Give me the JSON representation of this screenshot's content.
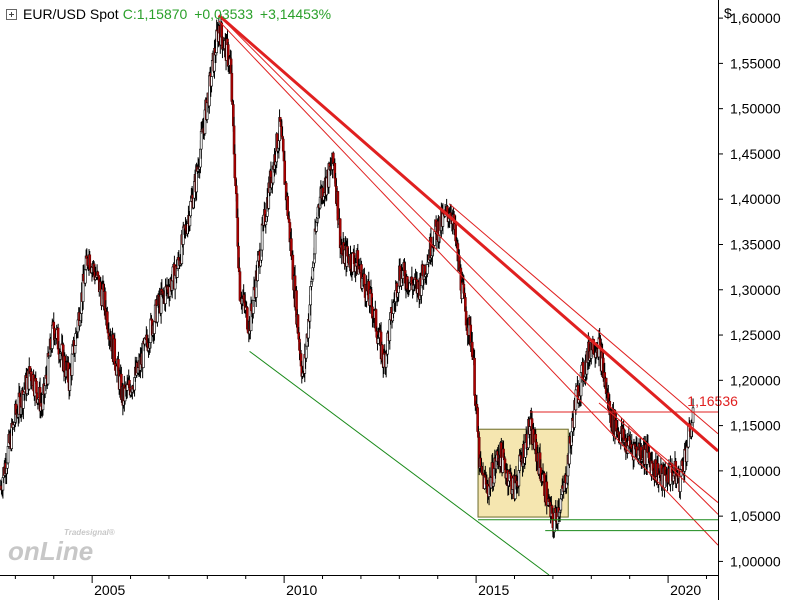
{
  "header": {
    "symbol": "EUR/USD Spot",
    "close": "C:1,15870",
    "change": "+0,03533",
    "change_pct": "+3,14453%",
    "quote_color": "#2aa02a"
  },
  "axis": {
    "currency": "$"
  },
  "watermark": {
    "small": "Tradesignal®",
    "main": "onLine"
  },
  "annotation": {
    "level_label": "1,16536",
    "color": "#e02020"
  },
  "chart_data": {
    "type": "candlestick",
    "instrument": "EUR/USD Spot",
    "ylim": [
      0.985,
      1.62
    ],
    "xlim": [
      2002.6,
      2021.3
    ],
    "yticks": [
      1.0,
      1.05,
      1.1,
      1.15,
      1.2,
      1.25,
      1.3,
      1.35,
      1.4,
      1.45,
      1.5,
      1.55,
      1.6
    ],
    "ytick_labels": [
      "1,00000",
      "1,05000",
      "1,10000",
      "1,15000",
      "1,20000",
      "1,25000",
      "1,30000",
      "1,35000",
      "1,40000",
      "1,45000",
      "1,50000",
      "1,55000",
      "1,60000"
    ],
    "xticks": [
      2005,
      2010,
      2015,
      2020
    ],
    "xtick_labels": [
      "2005",
      "2010",
      "2015",
      "2020"
    ],
    "price_path": [
      [
        2002.6,
        1.08
      ],
      [
        2003.0,
        1.16
      ],
      [
        2003.4,
        1.21
      ],
      [
        2003.7,
        1.17
      ],
      [
        2004.0,
        1.26
      ],
      [
        2004.4,
        1.2
      ],
      [
        2004.9,
        1.34
      ],
      [
        2005.3,
        1.29
      ],
      [
        2005.8,
        1.18
      ],
      [
        2006.2,
        1.21
      ],
      [
        2006.7,
        1.28
      ],
      [
        2007.2,
        1.32
      ],
      [
        2007.7,
        1.42
      ],
      [
        2007.9,
        1.48
      ],
      [
        2008.3,
        1.59
      ],
      [
        2008.6,
        1.55
      ],
      [
        2008.85,
        1.3
      ],
      [
        2009.1,
        1.26
      ],
      [
        2009.6,
        1.41
      ],
      [
        2009.9,
        1.48
      ],
      [
        2010.4,
        1.24
      ],
      [
        2010.5,
        1.2
      ],
      [
        2010.9,
        1.4
      ],
      [
        2011.3,
        1.44
      ],
      [
        2011.5,
        1.34
      ],
      [
        2011.9,
        1.33
      ],
      [
        2012.3,
        1.28
      ],
      [
        2012.6,
        1.22
      ],
      [
        2013.0,
        1.32
      ],
      [
        2013.5,
        1.3
      ],
      [
        2013.9,
        1.36
      ],
      [
        2014.35,
        1.39
      ],
      [
        2014.7,
        1.28
      ],
      [
        2014.9,
        1.24
      ],
      [
        2015.1,
        1.1
      ],
      [
        2015.3,
        1.08
      ],
      [
        2015.6,
        1.12
      ],
      [
        2016.0,
        1.08
      ],
      [
        2016.4,
        1.15
      ],
      [
        2016.8,
        1.08
      ],
      [
        2017.0,
        1.04
      ],
      [
        2017.3,
        1.08
      ],
      [
        2017.6,
        1.18
      ],
      [
        2018.0,
        1.24
      ],
      [
        2018.2,
        1.24
      ],
      [
        2018.5,
        1.16
      ],
      [
        2018.9,
        1.13
      ],
      [
        2019.4,
        1.12
      ],
      [
        2019.7,
        1.1
      ],
      [
        2019.85,
        1.09
      ],
      [
        2020.1,
        1.1
      ],
      [
        2020.3,
        1.09
      ],
      [
        2020.45,
        1.12
      ],
      [
        2020.65,
        1.16
      ]
    ],
    "lines": [
      {
        "name": "main-downtrend",
        "color": "#e02020",
        "width": 3,
        "points": [
          [
            2008.3,
            1.603
          ],
          [
            2021.3,
            1.122
          ]
        ]
      },
      {
        "name": "downtrend-channel-1",
        "color": "#e02020",
        "width": 1,
        "points": [
          [
            2008.3,
            1.603
          ],
          [
            2021.3,
            1.052
          ]
        ]
      },
      {
        "name": "downtrend-channel-2",
        "color": "#e02020",
        "width": 1,
        "points": [
          [
            2008.3,
            1.597
          ],
          [
            2021.3,
            1.018
          ]
        ]
      },
      {
        "name": "downtrend-upper-parallel",
        "color": "#e02020",
        "width": 1,
        "points": [
          [
            2014.3,
            1.395
          ],
          [
            2021.3,
            1.141
          ]
        ]
      },
      {
        "name": "short-downtrend",
        "color": "#e02020",
        "width": 1,
        "points": [
          [
            2018.2,
            1.175
          ],
          [
            2021.3,
            1.065
          ]
        ]
      },
      {
        "name": "green-support-line",
        "color": "#1a8a1a",
        "width": 1,
        "points": [
          [
            2009.1,
            1.232
          ],
          [
            2016.9,
            0.985
          ]
        ]
      },
      {
        "name": "green-horizontal-1",
        "color": "#1a8a1a",
        "width": 1,
        "points": [
          [
            2015.05,
            1.046
          ],
          [
            2021.3,
            1.046
          ]
        ]
      },
      {
        "name": "green-horizontal-2",
        "color": "#1a8a1a",
        "width": 1,
        "points": [
          [
            2016.8,
            1.034
          ],
          [
            2021.3,
            1.034
          ]
        ]
      },
      {
        "name": "red-horizontal-resistance",
        "color": "#e02020",
        "width": 1,
        "points": [
          [
            2016.4,
            1.165
          ],
          [
            2021.3,
            1.165
          ]
        ]
      }
    ],
    "range_box": {
      "x0": 2015.05,
      "x1": 2017.4,
      "y0": 1.049,
      "y1": 1.146,
      "fill": "#f5e6b0",
      "stroke": "#6a6a2a"
    },
    "axis_ranges": {
      "x": [
        2002.6,
        2021.3
      ],
      "y": [
        0.985,
        1.62
      ]
    },
    "grid": false,
    "legend": "none"
  }
}
